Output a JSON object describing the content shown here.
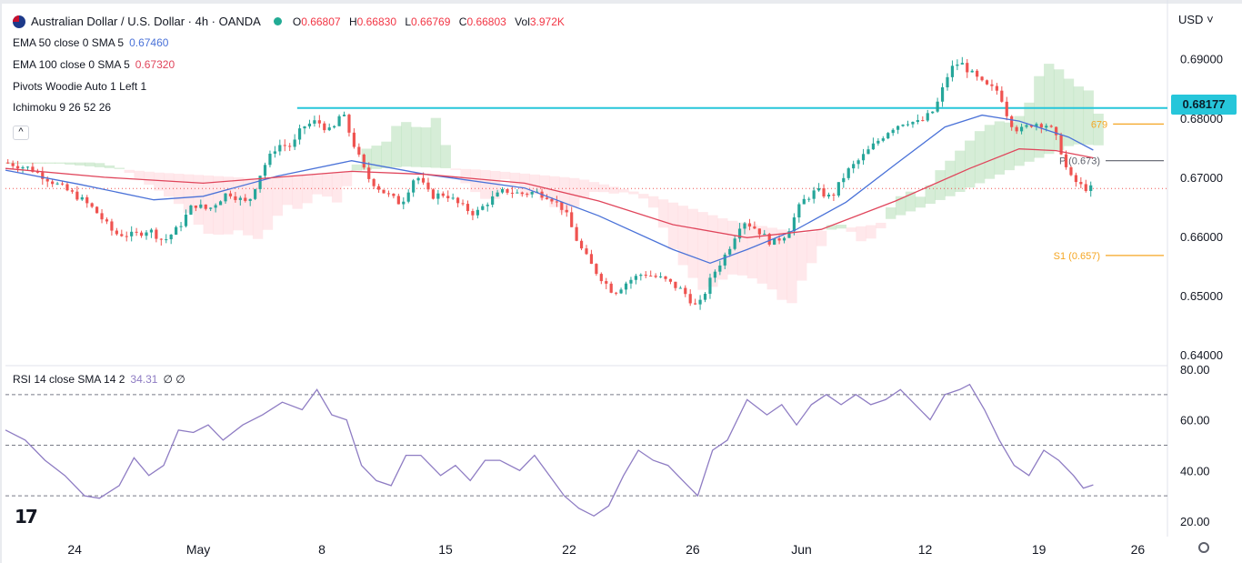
{
  "header": {
    "symbol_title": "Australian Dollar / U.S. Dollar · 4h · OANDA",
    "ohlc": [
      {
        "label": "O",
        "value": "0.66807"
      },
      {
        "label": "H",
        "value": "0.66830"
      },
      {
        "label": "L",
        "value": "0.66769"
      },
      {
        "label": "C",
        "value": "0.66803"
      },
      {
        "label": "Vol",
        "value": "3.972K"
      }
    ]
  },
  "indicators": [
    {
      "label": "EMA 50 close 0 SMA 5",
      "value": "0.67460",
      "color": "#4a72d8"
    },
    {
      "label": "EMA 100 close 0 SMA 5",
      "value": "0.67320",
      "color": "#e0455b"
    },
    {
      "label": "Pivots Woodie Auto 1 Left 1",
      "value": ""
    },
    {
      "label": "Ichimoku 9 26 52 26",
      "value": ""
    }
  ],
  "currency": "USD",
  "last_price": "0.68177",
  "rsi": {
    "label": "RSI 14 close SMA 14 2",
    "value": "34.31",
    "extra": "∅ ∅"
  },
  "colors": {
    "up": "#26a69a",
    "down": "#ef5350",
    "ema50": "#4a72d8",
    "ema100": "#e0455b",
    "resistance": "#26c6da",
    "pivot": "#5d606b",
    "rsi": "#8e7cc3",
    "cloud_green": "#a5d6a7",
    "cloud_red": "#ffcdd2"
  },
  "chart_data": {
    "type": "candlestick",
    "price_axis": {
      "ticks": [
        "0.69000",
        "0.68000",
        "0.67000",
        "0.66000",
        "0.65000",
        "0.64000"
      ],
      "range": [
        0.6385,
        0.6938
      ]
    },
    "rsi_axis": {
      "ticks": [
        "80.00",
        "60.00",
        "40.00",
        "20.00"
      ],
      "range": [
        16,
        80
      ]
    },
    "x_ticks": [
      "24",
      "May",
      "8",
      "15",
      "22",
      "26",
      "Jun",
      "12",
      "19",
      "26"
    ],
    "resistance": 0.6817,
    "pivot_levels": [
      {
        "label": "P (0.673)",
        "value": 0.6728
      },
      {
        "label": "S1 (0.657)",
        "value": 0.6568
      },
      {
        "label": "679",
        "value": 0.679
      }
    ],
    "price_path": [
      [
        0,
        0.6725
      ],
      [
        10,
        0.6715
      ],
      [
        20,
        0.669
      ],
      [
        30,
        0.6665
      ],
      [
        36,
        0.6645
      ],
      [
        44,
        0.6605
      ],
      [
        52,
        0.6602
      ],
      [
        58,
        0.6612
      ],
      [
        64,
        0.6592
      ],
      [
        70,
        0.6615
      ],
      [
        76,
        0.6655
      ],
      [
        82,
        0.6645
      ],
      [
        90,
        0.6675
      ],
      [
        98,
        0.6655
      ],
      [
        104,
        0.6715
      ],
      [
        110,
        0.6755
      ],
      [
        116,
        0.6752
      ],
      [
        120,
        0.6785
      ],
      [
        126,
        0.6795
      ],
      [
        132,
        0.6775
      ],
      [
        136,
        0.6812
      ],
      [
        140,
        0.6765
      ],
      [
        146,
        0.6702
      ],
      [
        152,
        0.6678
      ],
      [
        160,
        0.6655
      ],
      [
        166,
        0.6705
      ],
      [
        172,
        0.6668
      ],
      [
        178,
        0.6672
      ],
      [
        184,
        0.6652
      ],
      [
        190,
        0.6638
      ],
      [
        196,
        0.6662
      ],
      [
        202,
        0.6678
      ],
      [
        208,
        0.6672
      ],
      [
        214,
        0.6675
      ],
      [
        220,
        0.6668
      ],
      [
        226,
        0.6645
      ],
      [
        232,
        0.6585
      ],
      [
        238,
        0.6545
      ],
      [
        246,
        0.6505
      ],
      [
        252,
        0.6525
      ],
      [
        258,
        0.6538
      ],
      [
        266,
        0.6528
      ],
      [
        274,
        0.6508
      ],
      [
        280,
        0.6478
      ],
      [
        286,
        0.6535
      ],
      [
        292,
        0.6575
      ],
      [
        298,
        0.6628
      ],
      [
        304,
        0.6612
      ],
      [
        310,
        0.6588
      ],
      [
        316,
        0.6605
      ],
      [
        322,
        0.6658
      ],
      [
        328,
        0.6678
      ],
      [
        334,
        0.6665
      ],
      [
        340,
        0.6708
      ],
      [
        346,
        0.6732
      ],
      [
        352,
        0.6758
      ],
      [
        358,
        0.6782
      ],
      [
        364,
        0.6795
      ],
      [
        370,
        0.6792
      ],
      [
        376,
        0.6815
      ],
      [
        382,
        0.6882
      ],
      [
        386,
        0.6895
      ],
      [
        390,
        0.6878
      ],
      [
        396,
        0.6855
      ],
      [
        402,
        0.6845
      ],
      [
        406,
        0.6795
      ],
      [
        410,
        0.6778
      ],
      [
        416,
        0.6792
      ],
      [
        422,
        0.6788
      ],
      [
        426,
        0.6758
      ],
      [
        430,
        0.6702
      ],
      [
        436,
        0.6682
      ],
      [
        440,
        0.6681
      ]
    ],
    "ema50": [
      [
        0,
        0.6712
      ],
      [
        30,
        0.6688
      ],
      [
        60,
        0.6662
      ],
      [
        80,
        0.6668
      ],
      [
        110,
        0.6702
      ],
      [
        140,
        0.6728
      ],
      [
        170,
        0.6705
      ],
      [
        210,
        0.6682
      ],
      [
        240,
        0.6635
      ],
      [
        270,
        0.6578
      ],
      [
        285,
        0.6555
      ],
      [
        300,
        0.6578
      ],
      [
        320,
        0.6612
      ],
      [
        340,
        0.6658
      ],
      [
        360,
        0.6722
      ],
      [
        380,
        0.6785
      ],
      [
        395,
        0.6805
      ],
      [
        410,
        0.6795
      ],
      [
        430,
        0.6768
      ],
      [
        440,
        0.6746
      ]
    ],
    "ema100": [
      [
        0,
        0.6715
      ],
      [
        40,
        0.67
      ],
      [
        80,
        0.669
      ],
      [
        110,
        0.67
      ],
      [
        140,
        0.671
      ],
      [
        170,
        0.6705
      ],
      [
        210,
        0.669
      ],
      [
        240,
        0.666
      ],
      [
        270,
        0.662
      ],
      [
        300,
        0.6598
      ],
      [
        330,
        0.6612
      ],
      [
        360,
        0.666
      ],
      [
        390,
        0.6715
      ],
      [
        410,
        0.6748
      ],
      [
        425,
        0.6745
      ],
      [
        440,
        0.6733
      ]
    ],
    "rsi_path": [
      [
        0,
        56
      ],
      [
        8,
        52
      ],
      [
        16,
        44
      ],
      [
        24,
        38
      ],
      [
        32,
        30
      ],
      [
        38,
        29
      ],
      [
        46,
        34
      ],
      [
        52,
        45
      ],
      [
        58,
        38
      ],
      [
        64,
        42
      ],
      [
        70,
        56
      ],
      [
        76,
        55
      ],
      [
        82,
        58
      ],
      [
        88,
        52
      ],
      [
        96,
        58
      ],
      [
        104,
        62
      ],
      [
        112,
        67
      ],
      [
        120,
        64
      ],
      [
        126,
        72
      ],
      [
        132,
        62
      ],
      [
        138,
        60
      ],
      [
        144,
        42
      ],
      [
        150,
        36
      ],
      [
        156,
        34
      ],
      [
        162,
        46
      ],
      [
        168,
        46
      ],
      [
        176,
        38
      ],
      [
        182,
        42
      ],
      [
        188,
        36
      ],
      [
        194,
        44
      ],
      [
        200,
        44
      ],
      [
        208,
        40
      ],
      [
        214,
        46
      ],
      [
        220,
        38
      ],
      [
        226,
        30
      ],
      [
        232,
        25
      ],
      [
        238,
        22
      ],
      [
        244,
        26
      ],
      [
        250,
        38
      ],
      [
        256,
        48
      ],
      [
        262,
        44
      ],
      [
        268,
        42
      ],
      [
        274,
        36
      ],
      [
        280,
        30
      ],
      [
        286,
        48
      ],
      [
        292,
        52
      ],
      [
        300,
        68
      ],
      [
        308,
        62
      ],
      [
        314,
        66
      ],
      [
        320,
        58
      ],
      [
        326,
        66
      ],
      [
        332,
        70
      ],
      [
        338,
        66
      ],
      [
        344,
        70
      ],
      [
        350,
        66
      ],
      [
        356,
        68
      ],
      [
        362,
        72
      ],
      [
        368,
        66
      ],
      [
        374,
        60
      ],
      [
        380,
        70
      ],
      [
        386,
        72
      ],
      [
        390,
        74
      ],
      [
        396,
        64
      ],
      [
        402,
        52
      ],
      [
        408,
        42
      ],
      [
        414,
        38
      ],
      [
        420,
        48
      ],
      [
        426,
        44
      ],
      [
        432,
        38
      ],
      [
        436,
        33
      ],
      [
        440,
        34.3
      ]
    ]
  }
}
